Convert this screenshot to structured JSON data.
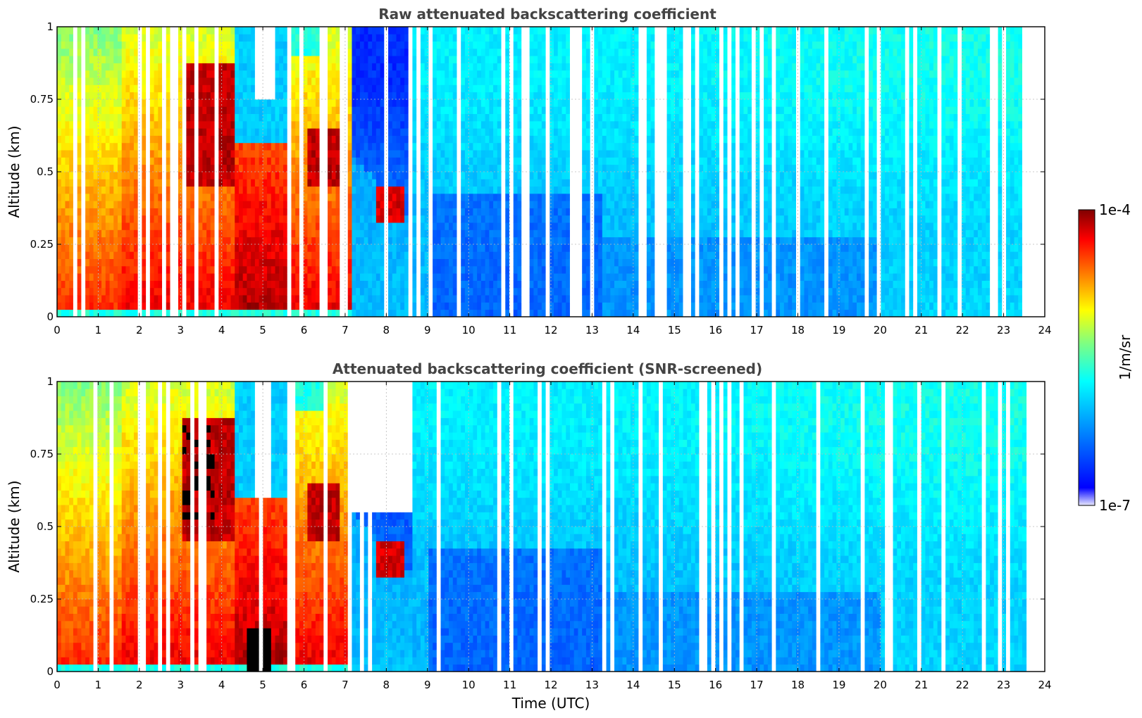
{
  "chart_data": [
    {
      "type": "heatmap",
      "title": "Raw attenuated backscattering coefficient",
      "xlabel": "",
      "ylabel": "Altitude (km)",
      "xlim": [
        0,
        24
      ],
      "ylim": [
        0,
        1
      ],
      "xticks": [
        "0",
        "1",
        "2",
        "3",
        "4",
        "5",
        "6",
        "7",
        "8",
        "9",
        "10",
        "11",
        "12",
        "13",
        "14",
        "15",
        "16",
        "17",
        "18",
        "19",
        "20",
        "21",
        "22",
        "23",
        "24"
      ],
      "yticks": [
        "0",
        "0.25",
        "0.5",
        "0.75",
        "1"
      ],
      "grid": true,
      "data_end_time": 23.55,
      "screened": false
    },
    {
      "type": "heatmap",
      "title": "Attenuated backscattering coefficient (SNR-screened)",
      "xlabel": "Time (UTC)",
      "ylabel": "Altitude (km)",
      "xlim": [
        0,
        24
      ],
      "ylim": [
        0,
        1
      ],
      "xticks": [
        "0",
        "1",
        "2",
        "3",
        "4",
        "5",
        "6",
        "7",
        "8",
        "9",
        "10",
        "11",
        "12",
        "13",
        "14",
        "15",
        "16",
        "17",
        "18",
        "19",
        "20",
        "21",
        "22",
        "23",
        "24"
      ],
      "yticks": [
        "0",
        "0.25",
        "0.5",
        "0.75",
        "1"
      ],
      "grid": true,
      "data_end_time": 23.55,
      "screened": true
    }
  ],
  "colorbar": {
    "label": "1/m/sr",
    "max_label": "1e-4",
    "min_label": "1e-7",
    "scale": "log",
    "colormap": "jet",
    "colors": [
      "#e8e8ff",
      "#0000ff",
      "#00aaff",
      "#00ffff",
      "#80ff80",
      "#ffff00",
      "#ff8000",
      "#ff0000",
      "#800000"
    ]
  }
}
